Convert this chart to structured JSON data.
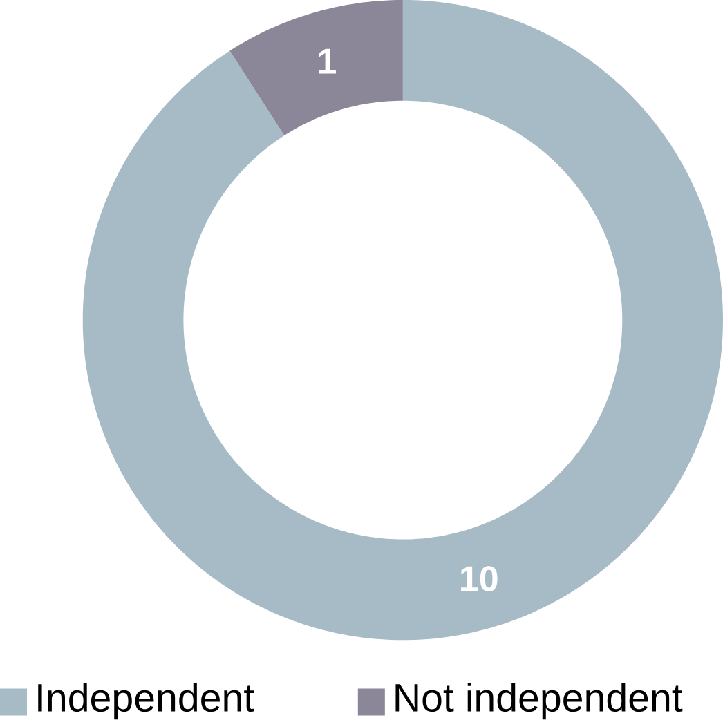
{
  "chart_data": {
    "type": "donut",
    "categories": [
      "Independent",
      "Not independent"
    ],
    "values": [
      10,
      1
    ],
    "colors": [
      "#a6bbc6",
      "#8b8698"
    ],
    "data_labels": true,
    "legend": "bottom"
  }
}
